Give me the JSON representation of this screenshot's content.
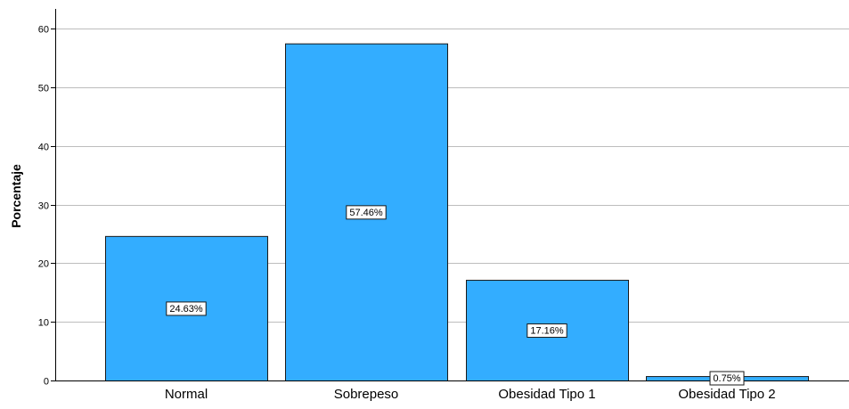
{
  "chart_data": {
    "type": "bar",
    "categories": [
      "Normal",
      "Sobrepeso",
      "Obesidad Tipo 1",
      "Obesidad Tipo 2"
    ],
    "values": [
      24.63,
      57.46,
      17.16,
      0.75
    ],
    "data_labels": [
      "24.63%",
      "57.46%",
      "17.16%",
      "0.75%"
    ],
    "ylabel": "Porcentaje",
    "xlabel": "",
    "title": "",
    "ylim": [
      0,
      60
    ],
    "yticks": [
      0,
      10,
      20,
      30,
      40,
      50,
      60
    ],
    "grid": true,
    "colors": {
      "bar_fill": "#33adff",
      "bar_stroke": "#1a1a1a",
      "grid": "#bdbdbd",
      "axis": "#000000",
      "text": "#000000",
      "label_box_fill": "#ffffff"
    }
  }
}
